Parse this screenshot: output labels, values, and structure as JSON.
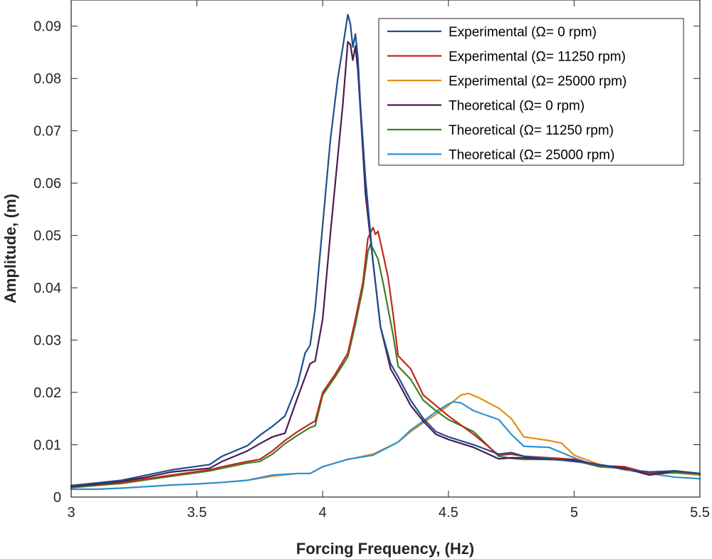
{
  "chart_data": {
    "type": "line",
    "title": "",
    "xlabel": "Forcing Frequency, (Hz)",
    "ylabel": "Amplitude, (m)",
    "xlim": [
      3,
      5.5
    ],
    "ylim": [
      0,
      0.095
    ],
    "grid": false,
    "legend_position": "top-right",
    "x_ticks": [
      3,
      3.5,
      4,
      4.5,
      5,
      5.5
    ],
    "x_tick_labels": [
      "3",
      "3.5",
      "4",
      "4.5",
      "5",
      "5.5"
    ],
    "y_ticks": [
      0,
      0.01,
      0.02,
      0.03,
      0.04,
      0.05,
      0.06,
      0.07,
      0.08,
      0.09
    ],
    "y_tick_labels": [
      "0",
      "0.01",
      "0.02",
      "0.03",
      "0.04",
      "0.05",
      "0.06",
      "0.07",
      "0.08",
      "0.09"
    ],
    "series": [
      {
        "name": "Experimental (Ω= 0 rpm)",
        "color": "#1f4e8c",
        "x": [
          3.0,
          3.1,
          3.2,
          3.3,
          3.4,
          3.55,
          3.6,
          3.7,
          3.75,
          3.8,
          3.85,
          3.9,
          3.93,
          3.95,
          3.97,
          4.0,
          4.03,
          4.06,
          4.08,
          4.1,
          4.11,
          4.12,
          4.13,
          4.14,
          4.15,
          4.17,
          4.2,
          4.23,
          4.27,
          4.3,
          4.35,
          4.4,
          4.45,
          4.5,
          4.6,
          4.7,
          4.75,
          4.8,
          4.9,
          5.0,
          5.1,
          5.2,
          5.3,
          5.4,
          5.5
        ],
        "y": [
          0.0022,
          0.0027,
          0.0032,
          0.0042,
          0.0052,
          0.0062,
          0.0078,
          0.0098,
          0.0118,
          0.0135,
          0.0155,
          0.0215,
          0.0275,
          0.029,
          0.036,
          0.052,
          0.068,
          0.08,
          0.086,
          0.0922,
          0.0905,
          0.086,
          0.0885,
          0.084,
          0.075,
          0.061,
          0.045,
          0.0325,
          0.0255,
          0.023,
          0.0185,
          0.015,
          0.0125,
          0.0115,
          0.01,
          0.0082,
          0.0085,
          0.0078,
          0.0073,
          0.0068,
          0.0062,
          0.0053,
          0.0048,
          0.005,
          0.0045
        ]
      },
      {
        "name": "Experimental (Ω= 11250 rpm)",
        "color": "#c0281b",
        "x": [
          3.0,
          3.1,
          3.2,
          3.3,
          3.4,
          3.55,
          3.6,
          3.7,
          3.75,
          3.8,
          3.85,
          3.9,
          3.95,
          3.97,
          4.0,
          4.05,
          4.1,
          4.13,
          4.16,
          4.18,
          4.2,
          4.21,
          4.22,
          4.24,
          4.26,
          4.28,
          4.3,
          4.35,
          4.4,
          4.45,
          4.5,
          4.6,
          4.7,
          4.75,
          4.8,
          4.9,
          5.0,
          5.1,
          5.2,
          5.3,
          5.4,
          5.5
        ],
        "y": [
          0.002,
          0.0024,
          0.0028,
          0.0035,
          0.0042,
          0.0052,
          0.0058,
          0.0068,
          0.0072,
          0.0088,
          0.0108,
          0.0125,
          0.014,
          0.0145,
          0.02,
          0.0235,
          0.0275,
          0.034,
          0.041,
          0.0495,
          0.0515,
          0.0502,
          0.0508,
          0.0465,
          0.042,
          0.035,
          0.027,
          0.0245,
          0.0195,
          0.0175,
          0.0155,
          0.012,
          0.008,
          0.0082,
          0.0078,
          0.0075,
          0.0072,
          0.006,
          0.0058,
          0.0045,
          0.005,
          0.0045
        ]
      },
      {
        "name": "Experimental (Ω= 25000 rpm)",
        "color": "#e28e1a",
        "x": [
          3.0,
          3.1,
          3.2,
          3.3,
          3.4,
          3.5,
          3.6,
          3.7,
          3.8,
          3.9,
          3.95,
          4.0,
          4.1,
          4.2,
          4.3,
          4.35,
          4.4,
          4.45,
          4.5,
          4.55,
          4.58,
          4.62,
          4.7,
          4.75,
          4.8,
          4.9,
          4.95,
          5.0,
          5.1,
          5.2,
          5.3,
          5.4,
          5.5
        ],
        "y": [
          0.0015,
          0.0015,
          0.0017,
          0.002,
          0.0023,
          0.0025,
          0.0028,
          0.0032,
          0.004,
          0.0045,
          0.0045,
          0.0058,
          0.0072,
          0.0082,
          0.0105,
          0.0125,
          0.0142,
          0.0158,
          0.0175,
          0.0195,
          0.0198,
          0.019,
          0.017,
          0.015,
          0.0115,
          0.0108,
          0.0103,
          0.008,
          0.0062,
          0.0052,
          0.0045,
          0.0046,
          0.0042
        ]
      },
      {
        "name": "Theoretical (Ω= 0 rpm)",
        "color": "#4b1b53",
        "x": [
          3.0,
          3.1,
          3.2,
          3.3,
          3.4,
          3.55,
          3.6,
          3.7,
          3.75,
          3.8,
          3.85,
          3.9,
          3.95,
          3.97,
          4.0,
          4.03,
          4.06,
          4.08,
          4.1,
          4.11,
          4.12,
          4.13,
          4.14,
          4.15,
          4.17,
          4.2,
          4.23,
          4.27,
          4.3,
          4.35,
          4.4,
          4.45,
          4.5,
          4.6,
          4.7,
          4.75,
          4.8,
          4.9,
          5.0,
          5.1,
          5.2,
          5.3,
          5.4,
          5.5
        ],
        "y": [
          0.002,
          0.0025,
          0.003,
          0.0038,
          0.0048,
          0.0055,
          0.0068,
          0.0088,
          0.0102,
          0.0115,
          0.0122,
          0.019,
          0.0255,
          0.026,
          0.034,
          0.05,
          0.065,
          0.075,
          0.087,
          0.0865,
          0.0835,
          0.0862,
          0.0815,
          0.074,
          0.058,
          0.045,
          0.0325,
          0.0245,
          0.022,
          0.0175,
          0.0145,
          0.012,
          0.011,
          0.0095,
          0.0073,
          0.0075,
          0.0075,
          0.0072,
          0.007,
          0.0062,
          0.0055,
          0.0042,
          0.005,
          0.0045
        ]
      },
      {
        "name": "Theoretical (Ω= 11250 rpm)",
        "color": "#3f7f27",
        "x": [
          3.0,
          3.1,
          3.2,
          3.3,
          3.4,
          3.55,
          3.6,
          3.7,
          3.75,
          3.8,
          3.85,
          3.9,
          3.95,
          3.97,
          4.0,
          4.05,
          4.1,
          4.13,
          4.16,
          4.18,
          4.19,
          4.2,
          4.21,
          4.22,
          4.24,
          4.26,
          4.28,
          4.3,
          4.35,
          4.4,
          4.45,
          4.5,
          4.6,
          4.7,
          4.75,
          4.8,
          4.9,
          5.0,
          5.1,
          5.2,
          5.3,
          5.4,
          5.5
        ],
        "y": [
          0.0018,
          0.0022,
          0.0026,
          0.0033,
          0.004,
          0.005,
          0.0055,
          0.0065,
          0.0068,
          0.0082,
          0.0102,
          0.0118,
          0.0133,
          0.0136,
          0.0195,
          0.023,
          0.0268,
          0.033,
          0.04,
          0.047,
          0.0483,
          0.0475,
          0.0465,
          0.0455,
          0.041,
          0.036,
          0.031,
          0.025,
          0.0225,
          0.0185,
          0.0165,
          0.0148,
          0.0125,
          0.0078,
          0.0074,
          0.0072,
          0.0072,
          0.007,
          0.0058,
          0.0055,
          0.0043,
          0.0047,
          0.0044
        ]
      },
      {
        "name": "Theoretical (Ω= 25000 rpm)",
        "color": "#2e92d4",
        "x": [
          3.0,
          3.1,
          3.2,
          3.3,
          3.4,
          3.5,
          3.6,
          3.7,
          3.8,
          3.9,
          3.95,
          4.0,
          4.1,
          4.2,
          4.3,
          4.35,
          4.4,
          4.45,
          4.5,
          4.52,
          4.55,
          4.6,
          4.7,
          4.75,
          4.8,
          4.9,
          5.0,
          5.1,
          5.2,
          5.3,
          5.4,
          5.5
        ],
        "y": [
          0.0015,
          0.0015,
          0.0017,
          0.002,
          0.0023,
          0.0025,
          0.0028,
          0.0032,
          0.0042,
          0.0045,
          0.0045,
          0.0058,
          0.0072,
          0.008,
          0.0105,
          0.0128,
          0.0145,
          0.0163,
          0.0178,
          0.0182,
          0.018,
          0.0165,
          0.0148,
          0.012,
          0.0097,
          0.0095,
          0.0075,
          0.0058,
          0.0055,
          0.0045,
          0.0038,
          0.0035
        ]
      }
    ]
  }
}
